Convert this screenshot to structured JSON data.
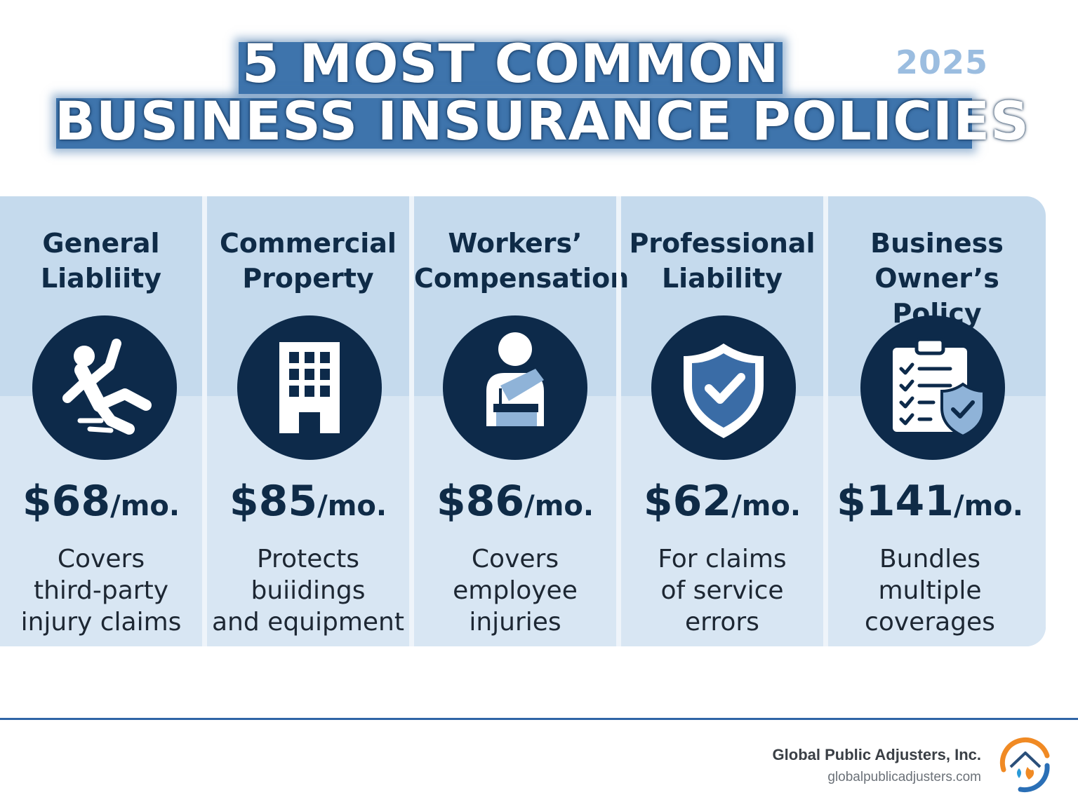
{
  "header": {
    "title_line1": "5 MOST COMMON",
    "title_line2": "BUSINESS INSURANCE POLICIES",
    "year": "2025"
  },
  "policies": [
    {
      "title_line1": "General",
      "title_line2": "Liabliity",
      "icon": "person-slipping-icon",
      "price": "$68",
      "unit": "/mo.",
      "desc_line1": "Covers",
      "desc_line2": "third-party",
      "desc_line3": "injury claims"
    },
    {
      "title_line1": "Commercial",
      "title_line2": "Property",
      "icon": "office-building-icon",
      "price": "$85",
      "unit": "/mo.",
      "desc_line1": "Protects",
      "desc_line2": "buiidings",
      "desc_line3": "and equipment"
    },
    {
      "title_line1": "Workers’",
      "title_line2": "Compensation",
      "icon": "injured-worker-sling-icon",
      "price": "$86",
      "unit": "/mo.",
      "desc_line1": "Covers",
      "desc_line2": "employee",
      "desc_line3": "injuries"
    },
    {
      "title_line1": "Professional",
      "title_line2": "Liability",
      "icon": "shield-check-icon",
      "price": "$62",
      "unit": "/mo.",
      "desc_line1": "For claims",
      "desc_line2": "of service",
      "desc_line3": "errors"
    },
    {
      "title_line1": "Business",
      "title_line2": "Owner’s Policy",
      "icon": "clipboard-shield-icon",
      "price": "$141",
      "unit": "/mo.",
      "desc_line1": "Bundles",
      "desc_line2": "multiple",
      "desc_line3": "coverages"
    }
  ],
  "footer": {
    "company": "Global Public Adjusters, Inc.",
    "website": "globalpublicadjusters.com",
    "logo": "house-flame-water-logo"
  },
  "colors": {
    "title_band": "#3e74ac",
    "icon_circle": "#0d2a4a",
    "panel_upper": "#c5daed",
    "panel_lower": "#d8e6f3",
    "accent_rule": "#2f64a6"
  }
}
